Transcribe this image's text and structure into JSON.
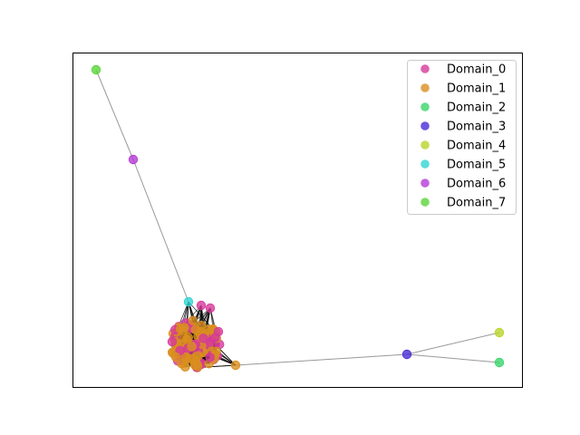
{
  "legend": {
    "items": [
      {
        "label": "Domain_0",
        "color": "#d6399a"
      },
      {
        "label": "Domain_1",
        "color": "#d98f1f"
      },
      {
        "label": "Domain_2",
        "color": "#3ad46a"
      },
      {
        "label": "Domain_3",
        "color": "#4a2bd6"
      },
      {
        "label": "Domain_4",
        "color": "#b8d42a"
      },
      {
        "label": "Domain_5",
        "color": "#2fd4d4"
      },
      {
        "label": "Domain_6",
        "color": "#b43ad6"
      },
      {
        "label": "Domain_7",
        "color": "#5ad43a"
      }
    ]
  }
}
